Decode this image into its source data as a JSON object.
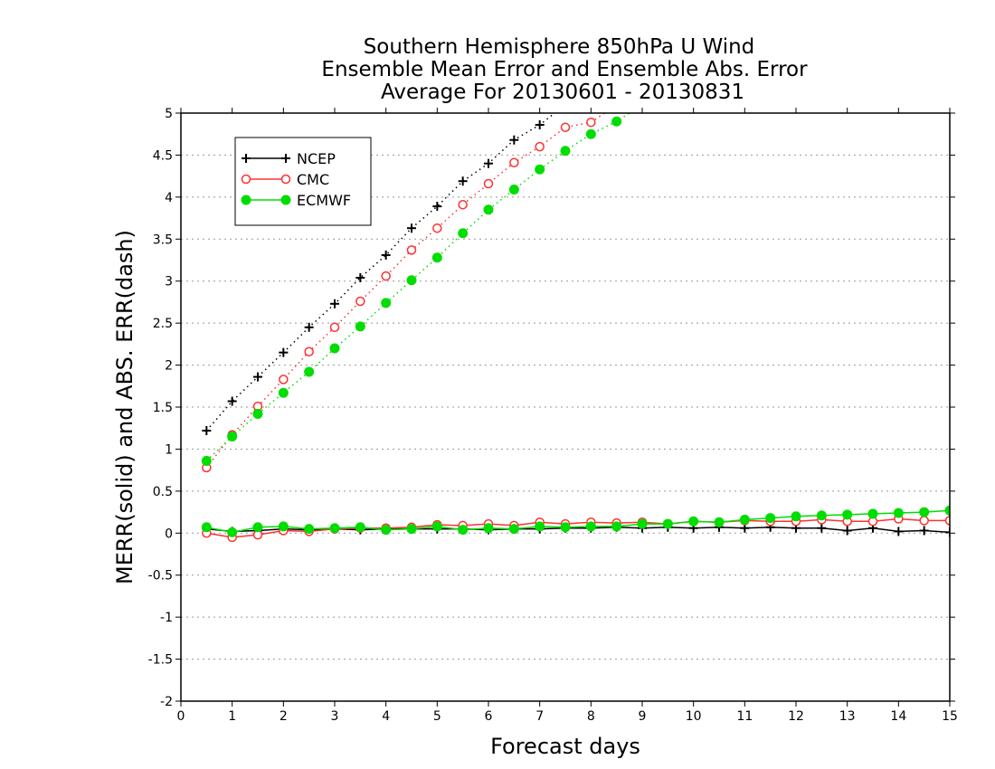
{
  "chart_data": {
    "type": "line",
    "title_lines": [
      "Southern Hemisphere 850hPa U Wind",
      "Ensemble Mean Error and Ensemble Abs. Error",
      "Average For 20130601 - 20130831"
    ],
    "xlabel": "Forecast days",
    "ylabel": "MERR(solid) and ABS. ERR(dash)",
    "xlim": [
      0,
      15
    ],
    "ylim": [
      -2,
      5
    ],
    "x_ticks": [
      "0",
      "1",
      "2",
      "3",
      "4",
      "5",
      "6",
      "7",
      "8",
      "9",
      "10",
      "11",
      "12",
      "13",
      "14",
      "15"
    ],
    "y_ticks": [
      "-2",
      "-1.5",
      "-1",
      "-0.5",
      "0",
      "0.5",
      "1",
      "1.5",
      "2",
      "2.5",
      "3",
      "3.5",
      "4",
      "4.5",
      "5"
    ],
    "grid": "horizontal dotted",
    "legend_position": "top-left",
    "series": [
      {
        "name": "NCEP",
        "color": "#000000",
        "marker": "plus",
        "abs_error": {
          "x": [
            0.5,
            1,
            1.5,
            2,
            2.5,
            3,
            3.5,
            4,
            4.5,
            5,
            5.5,
            6,
            6.5,
            7,
            7.5
          ],
          "y": [
            1.22,
            1.57,
            1.86,
            2.15,
            2.45,
            2.73,
            3.04,
            3.31,
            3.63,
            3.89,
            4.19,
            4.4,
            4.68,
            4.86,
            5.1
          ]
        },
        "mean_error": {
          "x": [
            0.5,
            1,
            1.5,
            2,
            2.5,
            3,
            3.5,
            4,
            4.5,
            5,
            5.5,
            6,
            6.5,
            7,
            7.5,
            8,
            8.5,
            9,
            9.5,
            10,
            10.5,
            11,
            11.5,
            12,
            12.5,
            13,
            13.5,
            14,
            14.5,
            15
          ],
          "y": [
            0.05,
            0.02,
            0.03,
            0.05,
            0.04,
            0.05,
            0.04,
            0.05,
            0.05,
            0.05,
            0.05,
            0.04,
            0.05,
            0.05,
            0.06,
            0.06,
            0.07,
            0.06,
            0.07,
            0.06,
            0.07,
            0.06,
            0.07,
            0.06,
            0.06,
            0.03,
            0.06,
            0.02,
            0.03,
            0.01
          ]
        }
      },
      {
        "name": "CMC",
        "color": "#ff3030",
        "marker": "open-circle",
        "abs_error": {
          "x": [
            0.5,
            1,
            1.5,
            2,
            2.5,
            3,
            3.5,
            4,
            4.5,
            5,
            5.5,
            6,
            6.5,
            7,
            7.5,
            8,
            8.5
          ],
          "y": [
            0.78,
            1.17,
            1.51,
            1.83,
            2.16,
            2.45,
            2.76,
            3.06,
            3.37,
            3.63,
            3.91,
            4.16,
            4.41,
            4.6,
            4.83,
            4.89,
            5.1
          ]
        },
        "mean_error": {
          "x": [
            0.5,
            1,
            1.5,
            2,
            2.5,
            3,
            3.5,
            4,
            4.5,
            5,
            5.5,
            6,
            6.5,
            7,
            7.5,
            8,
            8.5,
            9,
            9.5,
            10,
            10.5,
            11,
            11.5,
            12,
            12.5,
            13,
            13.5,
            14,
            14.5,
            15
          ],
          "y": [
            0.0,
            -0.05,
            -0.02,
            0.03,
            0.02,
            0.05,
            0.06,
            0.06,
            0.07,
            0.1,
            0.09,
            0.11,
            0.09,
            0.13,
            0.11,
            0.13,
            0.12,
            0.13,
            0.11,
            0.14,
            0.13,
            0.15,
            0.14,
            0.14,
            0.16,
            0.14,
            0.14,
            0.17,
            0.15,
            0.15
          ]
        }
      },
      {
        "name": "ECMWF",
        "color": "#00dd00",
        "marker": "filled-circle",
        "abs_error": {
          "x": [
            0.5,
            1,
            1.5,
            2,
            2.5,
            3,
            3.5,
            4,
            4.5,
            5,
            5.5,
            6,
            6.5,
            7,
            7.5,
            8,
            8.5,
            9
          ],
          "y": [
            0.86,
            1.15,
            1.42,
            1.67,
            1.92,
            2.2,
            2.46,
            2.74,
            3.01,
            3.28,
            3.57,
            3.85,
            4.09,
            4.33,
            4.55,
            4.75,
            4.9,
            5.1
          ]
        },
        "mean_error": {
          "x": [
            0.5,
            1,
            1.5,
            2,
            2.5,
            3,
            3.5,
            4,
            4.5,
            5,
            5.5,
            6,
            6.5,
            7,
            7.5,
            8,
            8.5,
            9,
            9.5,
            10,
            10.5,
            11,
            11.5,
            12,
            12.5,
            13,
            13.5,
            14,
            14.5,
            15
          ],
          "y": [
            0.07,
            0.01,
            0.07,
            0.08,
            0.05,
            0.06,
            0.07,
            0.04,
            0.05,
            0.08,
            0.04,
            0.06,
            0.05,
            0.08,
            0.07,
            0.08,
            0.08,
            0.11,
            0.11,
            0.14,
            0.13,
            0.16,
            0.18,
            0.2,
            0.21,
            0.22,
            0.23,
            0.24,
            0.25,
            0.27
          ]
        }
      }
    ]
  }
}
